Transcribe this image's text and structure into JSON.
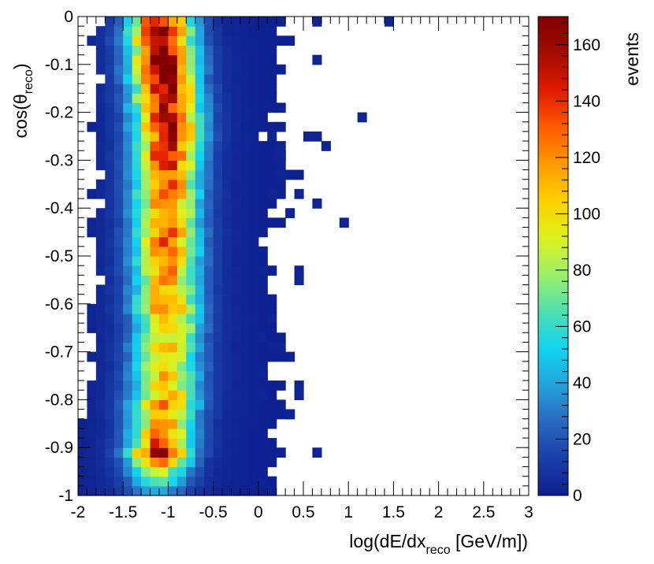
{
  "chart_data": {
    "type": "heatmap",
    "xlabel": {
      "main": "log(dE/dx",
      "sub": "reco",
      "tail": " [GeV/m])"
    },
    "ylabel": {
      "main": "cos(θ",
      "sub": "reco",
      "tail": ")"
    },
    "colorbar_label": "events",
    "xlim": [
      -2,
      3
    ],
    "ylim": [
      -1,
      0
    ],
    "zlim": [
      0,
      170
    ],
    "x_ticks": [
      -2,
      -1.5,
      -1,
      -0.5,
      0,
      0.5,
      1,
      1.5,
      2,
      2.5,
      3
    ],
    "x_tick_labels": [
      "-2",
      "-1.5",
      "-1",
      "-0.5",
      "0",
      "0.5",
      "1",
      "1.5",
      "2",
      "2.5",
      "3"
    ],
    "y_ticks": [
      -1,
      -0.9,
      -0.8,
      -0.7,
      -0.6,
      -0.5,
      -0.4,
      -0.3,
      -0.2,
      -0.1,
      0
    ],
    "y_tick_labels": [
      "-1",
      "-0.9",
      "-0.8",
      "-0.7",
      "-0.6",
      "-0.5",
      "-0.4",
      "-0.3",
      "-0.2",
      "-0.1",
      "0"
    ],
    "z_ticks": [
      0,
      20,
      40,
      60,
      80,
      100,
      120,
      140,
      160
    ],
    "z_tick_labels": [
      "0",
      "20",
      "40",
      "60",
      "80",
      "100",
      "120",
      "140",
      "160"
    ],
    "bins": {
      "nx": 50,
      "ny": 50,
      "x_start": -2,
      "x_width": 0.1,
      "y_start": -1,
      "y_width": 0.02
    },
    "ridge_center": [
      -1.12,
      -1.1,
      -1.1,
      -1.1,
      -1.1,
      -1.08,
      -1.07,
      -1.05,
      -1.05,
      -1.05,
      -1.03,
      -1.03,
      -1.03,
      -1.02,
      -1.02,
      -1.03,
      -1.02,
      -1.0,
      -1.0,
      -1.02,
      -1.02,
      -1.02,
      -1.02,
      -1.02,
      -1.02,
      -1.02,
      -1.02,
      -1.02,
      -1.02,
      -1.02,
      -1.02,
      -1.02,
      -1.02,
      -1.02,
      -1.02,
      -1.02,
      -1.0,
      -1.0,
      -1.0,
      -1.0,
      -1.02,
      -1.02,
      -1.02,
      -1.05,
      -1.05,
      -1.05,
      -1.05,
      -1.08,
      -1.08,
      -1.08
    ],
    "ridge_peak": [
      40,
      55,
      80,
      120,
      150,
      130,
      115,
      110,
      105,
      125,
      110,
      100,
      105,
      100,
      95,
      100,
      95,
      105,
      105,
      118,
      110,
      108,
      105,
      112,
      115,
      120,
      125,
      120,
      110,
      120,
      118,
      125,
      125,
      130,
      135,
      142,
      140,
      145,
      150,
      145,
      150,
      155,
      150,
      155,
      160,
      165,
      160,
      155,
      160,
      140
    ],
    "ridge_width": [
      0.22,
      0.23,
      0.23,
      0.23,
      0.24,
      0.24,
      0.24,
      0.24,
      0.25,
      0.25,
      0.25,
      0.25,
      0.25,
      0.25,
      0.25,
      0.25,
      0.25,
      0.25,
      0.25,
      0.25,
      0.25,
      0.25,
      0.25,
      0.25,
      0.25,
      0.25,
      0.25,
      0.25,
      0.25,
      0.25,
      0.25,
      0.25,
      0.25,
      0.25,
      0.25,
      0.25,
      0.25,
      0.25,
      0.25,
      0.25,
      0.25,
      0.25,
      0.25,
      0.25,
      0.25,
      0.25,
      0.25,
      0.25,
      0.24,
      0.24
    ],
    "bin_edges_hi_x": [
      0.1,
      0.1,
      0.0,
      0.1,
      0.2,
      0.1,
      0.0,
      0.1,
      0.3,
      0.2,
      0.1,
      0.2,
      0.0,
      0.0,
      0.3,
      0.0,
      0.2,
      0.1,
      0.0,
      0.1,
      0.1,
      0.0,
      0.0,
      0.1,
      0.0,
      0.0,
      -0.1,
      0.0,
      0.2,
      0.0,
      0.1,
      0.2,
      0.2,
      0.4,
      0.2,
      0.2,
      0.1,
      -0.1,
      0.2,
      0.0,
      0.2,
      0.1,
      0.1,
      0.1,
      0.2,
      0.1,
      0.1,
      0.3,
      0.1,
      0.2
    ],
    "bin_edges_lo_x": [
      -2.0,
      -2.0,
      -2.0,
      -2.0,
      -2.0,
      -2.0,
      -2.0,
      -2.0,
      -1.9,
      -1.9,
      -1.9,
      -1.9,
      -1.8,
      -1.8,
      -1.9,
      -1.8,
      -1.8,
      -1.9,
      -1.9,
      -1.9,
      -1.8,
      -1.8,
      -1.7,
      -1.8,
      -1.8,
      -1.8,
      -1.8,
      -1.9,
      -1.9,
      -1.8,
      -1.7,
      -1.9,
      -1.8,
      -1.7,
      -1.8,
      -1.8,
      -1.8,
      -1.8,
      -1.9,
      -1.8,
      -1.8,
      -1.8,
      -1.8,
      -1.7,
      -1.8,
      -1.8,
      -1.8,
      -1.9,
      -1.8,
      -1.7
    ],
    "isolated_bins": [
      [
        0.6,
        -0.91
      ],
      [
        0.0,
        -0.97
      ],
      [
        0.4,
        -0.79
      ],
      [
        0.4,
        -0.77
      ],
      [
        0.3,
        -0.83
      ],
      [
        0.2,
        -0.69
      ],
      [
        0.0,
        -0.75
      ],
      [
        0.0,
        -0.79
      ],
      [
        0.1,
        -0.69
      ],
      [
        0.0,
        -0.67
      ],
      [
        0.1,
        -0.63
      ],
      [
        0.4,
        -0.55
      ],
      [
        0.4,
        -0.53
      ],
      [
        0.0,
        -0.53
      ],
      [
        0.9,
        -0.43
      ],
      [
        0.6,
        -0.39
      ],
      [
        0.3,
        -0.41
      ],
      [
        0.4,
        -0.37
      ],
      [
        0.1,
        -0.37
      ],
      [
        0.2,
        -0.33
      ],
      [
        1.1,
        -0.21
      ],
      [
        0.5,
        -0.25
      ],
      [
        0.6,
        -0.25
      ],
      [
        0.2,
        -0.27
      ],
      [
        0.7,
        -0.27
      ],
      [
        0.1,
        -0.25
      ],
      [
        0.6,
        -0.09
      ],
      [
        1.4,
        -0.01
      ],
      [
        0.6,
        -0.01
      ],
      [
        0.2,
        -0.29
      ]
    ],
    "palette": [
      "#0d1f8f",
      "#1a3fa8",
      "#2a68c0",
      "#23a3dc",
      "#12d4ef",
      "#4fe0b0",
      "#9df06a",
      "#dcf21d",
      "#ffd000",
      "#ff9a00",
      "#ff5a00",
      "#e01a00",
      "#a30d00",
      "#800000"
    ]
  }
}
